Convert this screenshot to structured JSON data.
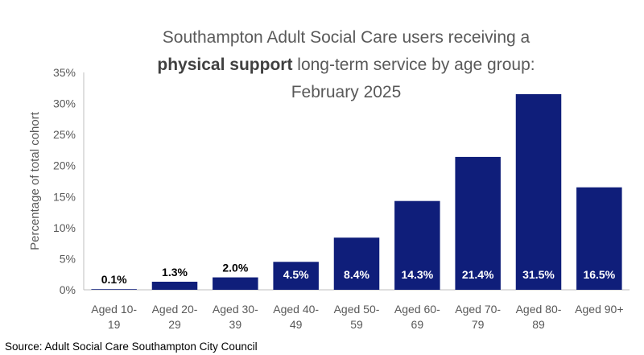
{
  "title": {
    "line1": "Southampton Adult Social Care users receiving a",
    "bold": "physical support",
    "rest": " long-term service by age group:",
    "line3": "February 2025"
  },
  "source": "Source: Adult Social Care Southampton City Council",
  "chart_data": {
    "type": "bar",
    "title": "Southampton Adult Social Care users receiving a physical support long-term service by age group: February 2025",
    "xlabel": "",
    "ylabel": "Percentage of total cohort",
    "ylim": [
      0,
      35
    ],
    "yticks": [
      "0%",
      "5%",
      "10%",
      "15%",
      "20%",
      "25%",
      "30%",
      "35%"
    ],
    "categories": [
      [
        "Aged 10-",
        "19"
      ],
      [
        "Aged 20-",
        "29"
      ],
      [
        "Aged 30-",
        "39"
      ],
      [
        "Aged 40-",
        "49"
      ],
      [
        "Aged 50-",
        "59"
      ],
      [
        "Aged 60-",
        "69"
      ],
      [
        "Aged 70-",
        "79"
      ],
      [
        "Aged 80-",
        "89"
      ],
      [
        "Aged 90+",
        ""
      ]
    ],
    "values": [
      0.1,
      1.3,
      2.0,
      4.5,
      8.4,
      14.3,
      21.4,
      31.5,
      16.5
    ],
    "data_labels": [
      "0.1%",
      "1.3%",
      "2.0%",
      "4.5%",
      "8.4%",
      "14.3%",
      "21.4%",
      "31.5%",
      "16.5%"
    ],
    "grid": false,
    "bar_color": "#0F1E7A",
    "label_color_inside": "#ffffff",
    "label_color_outside": "#000000"
  }
}
